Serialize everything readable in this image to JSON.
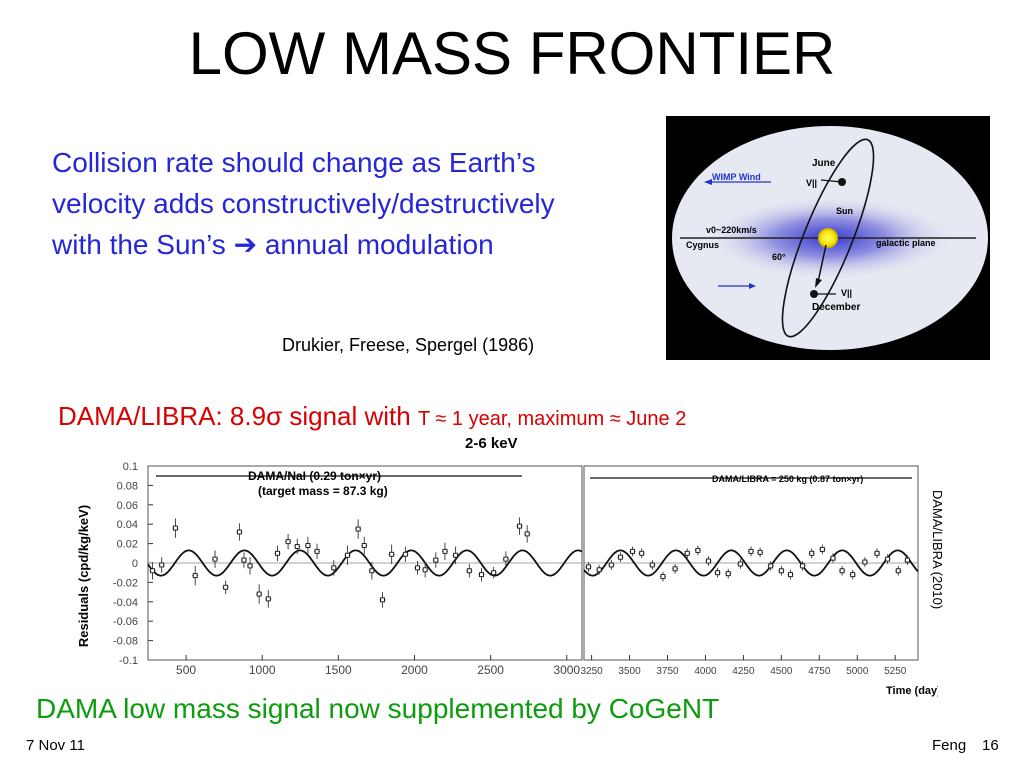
{
  "slide": {
    "title": "LOW MASS FRONTIER",
    "intro_text": "Collision rate should change as Earth’s velocity adds constructively/destructively with the Sun’s",
    "intro_arrow": "➔",
    "intro_tail": " annual modulation",
    "citation": "Drukier, Freese, Spergel (1986)",
    "headline_prefix": "DAMA/LIBRA: 8.9",
    "headline_sigma": "σ",
    "headline_signal": " signal with ",
    "headline_period": "T ≈ 1 year, maximum ≈ June 2",
    "side_credit": "DAMA/LIBRA (2010)",
    "conclusion": "DAMA low mass signal now supplemented by CoGeNT",
    "footer_date": "7 Nov 11",
    "footer_author": "Feng",
    "footer_page": "16",
    "accent_blue": "#2626d9",
    "accent_red": "#d80000",
    "accent_green": "#0d9c0d"
  },
  "sun_figure": {
    "label_june": "June",
    "label_wimp_wind": "WIMP Wind",
    "label_v_top": "V||",
    "label_sun": "Sun",
    "label_v0": "v0~220km/s",
    "label_cygnus": "Cygnus",
    "label_galactic_plane": "galactic plane",
    "label_angle": "60°",
    "label_v_bottom": "V||",
    "label_december": "December"
  },
  "chart_data": {
    "type": "scatter",
    "title": "2-6 keV",
    "ylabel": "Residuals (cpd/kg/keV)",
    "xlabel": "Time (day)",
    "ylim": [
      -0.1,
      0.1
    ],
    "yticks": [
      0.1,
      0.08,
      0.06,
      0.04,
      0.02,
      0,
      -0.02,
      -0.04,
      -0.06,
      -0.08,
      -0.1
    ],
    "panels": [
      {
        "name": "DAMA/NaI",
        "label_line1": "DAMA/NaI (0.29 ton×yr)",
        "label_line2": "(target mass = 87.3 kg)",
        "xlim": [
          250,
          3100
        ],
        "xticks": [
          500,
          1000,
          1500,
          2000,
          2500,
          3000
        ]
      },
      {
        "name": "DAMA/LIBRA",
        "label_line1": "DAMA/LIBRA = 250 kg (0.87 ton×yr)",
        "xlim": [
          3200,
          5400
        ],
        "xticks": [
          3250,
          3500,
          3750,
          4000,
          4250,
          4500,
          4750,
          5000,
          5250
        ]
      }
    ],
    "model": {
      "amplitude": 0.013,
      "period_days": 365.25,
      "phase_day": 152.5
    },
    "series": [
      {
        "points": [
          {
            "x": 280,
            "y": -0.008,
            "e": 0.009
          },
          {
            "x": 340,
            "y": -0.002,
            "e": 0.008
          },
          {
            "x": 430,
            "y": 0.036,
            "e": 0.01
          },
          {
            "x": 560,
            "y": -0.013,
            "e": 0.01
          },
          {
            "x": 690,
            "y": 0.004,
            "e": 0.009
          },
          {
            "x": 760,
            "y": -0.025,
            "e": 0.007
          },
          {
            "x": 850,
            "y": 0.032,
            "e": 0.009
          },
          {
            "x": 880,
            "y": 0.003,
            "e": 0.008
          },
          {
            "x": 920,
            "y": -0.003,
            "e": 0.009
          },
          {
            "x": 980,
            "y": -0.032,
            "e": 0.01
          },
          {
            "x": 1040,
            "y": -0.037,
            "e": 0.009
          },
          {
            "x": 1100,
            "y": 0.01,
            "e": 0.008
          },
          {
            "x": 1170,
            "y": 0.022,
            "e": 0.008
          },
          {
            "x": 1230,
            "y": 0.017,
            "e": 0.008
          },
          {
            "x": 1300,
            "y": 0.018,
            "e": 0.009
          },
          {
            "x": 1360,
            "y": 0.012,
            "e": 0.008
          },
          {
            "x": 1470,
            "y": -0.005,
            "e": 0.008
          },
          {
            "x": 1560,
            "y": 0.008,
            "e": 0.01
          },
          {
            "x": 1630,
            "y": 0.035,
            "e": 0.01
          },
          {
            "x": 1670,
            "y": 0.018,
            "e": 0.009
          },
          {
            "x": 1720,
            "y": -0.008,
            "e": 0.009
          },
          {
            "x": 1790,
            "y": -0.038,
            "e": 0.008
          },
          {
            "x": 1850,
            "y": 0.009,
            "e": 0.01
          },
          {
            "x": 1940,
            "y": 0.009,
            "e": 0.008
          },
          {
            "x": 2020,
            "y": -0.005,
            "e": 0.007
          },
          {
            "x": 2070,
            "y": -0.007,
            "e": 0.008
          },
          {
            "x": 2140,
            "y": 0.003,
            "e": 0.008
          },
          {
            "x": 2200,
            "y": 0.012,
            "e": 0.009
          },
          {
            "x": 2270,
            "y": 0.008,
            "e": 0.009
          },
          {
            "x": 2360,
            "y": -0.008,
            "e": 0.007
          },
          {
            "x": 2440,
            "y": -0.012,
            "e": 0.007
          },
          {
            "x": 2520,
            "y": -0.01,
            "e": 0.006
          },
          {
            "x": 2600,
            "y": 0.004,
            "e": 0.008
          },
          {
            "x": 2690,
            "y": 0.038,
            "e": 0.009
          },
          {
            "x": 2740,
            "y": 0.03,
            "e": 0.009
          }
        ]
      },
      {
        "points": [
          {
            "x": 3230,
            "y": -0.004,
            "e": 0.005
          },
          {
            "x": 3300,
            "y": -0.007,
            "e": 0.005
          },
          {
            "x": 3380,
            "y": -0.002,
            "e": 0.005
          },
          {
            "x": 3440,
            "y": 0.006,
            "e": 0.005
          },
          {
            "x": 3520,
            "y": 0.012,
            "e": 0.005
          },
          {
            "x": 3580,
            "y": 0.01,
            "e": 0.005
          },
          {
            "x": 3650,
            "y": -0.002,
            "e": 0.005
          },
          {
            "x": 3720,
            "y": -0.014,
            "e": 0.005
          },
          {
            "x": 3800,
            "y": -0.006,
            "e": 0.005
          },
          {
            "x": 3880,
            "y": 0.01,
            "e": 0.005
          },
          {
            "x": 3950,
            "y": 0.013,
            "e": 0.005
          },
          {
            "x": 4020,
            "y": 0.002,
            "e": 0.005
          },
          {
            "x": 4080,
            "y": -0.01,
            "e": 0.005
          },
          {
            "x": 4150,
            "y": -0.011,
            "e": 0.005
          },
          {
            "x": 4230,
            "y": -0.001,
            "e": 0.005
          },
          {
            "x": 4300,
            "y": 0.012,
            "e": 0.005
          },
          {
            "x": 4360,
            "y": 0.011,
            "e": 0.005
          },
          {
            "x": 4430,
            "y": -0.003,
            "e": 0.005
          },
          {
            "x": 4500,
            "y": -0.008,
            "e": 0.005
          },
          {
            "x": 4560,
            "y": -0.012,
            "e": 0.005
          },
          {
            "x": 4640,
            "y": -0.003,
            "e": 0.005
          },
          {
            "x": 4700,
            "y": 0.01,
            "e": 0.005
          },
          {
            "x": 4770,
            "y": 0.014,
            "e": 0.005
          },
          {
            "x": 4840,
            "y": 0.005,
            "e": 0.005
          },
          {
            "x": 4900,
            "y": -0.008,
            "e": 0.005
          },
          {
            "x": 4970,
            "y": -0.012,
            "e": 0.005
          },
          {
            "x": 5050,
            "y": 0.001,
            "e": 0.005
          },
          {
            "x": 5130,
            "y": 0.01,
            "e": 0.005
          },
          {
            "x": 5200,
            "y": 0.004,
            "e": 0.005
          },
          {
            "x": 5270,
            "y": -0.008,
            "e": 0.005
          },
          {
            "x": 5330,
            "y": 0.003,
            "e": 0.005
          }
        ]
      }
    ]
  }
}
